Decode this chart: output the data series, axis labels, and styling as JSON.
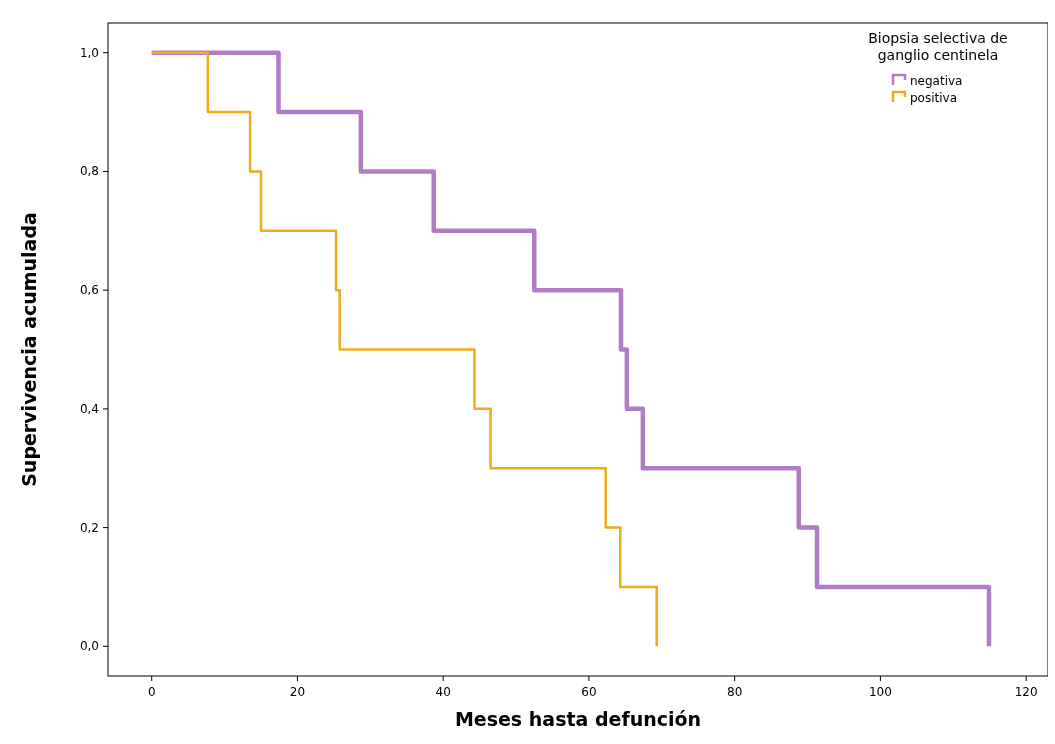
{
  "chart_data": {
    "type": "step",
    "xlabel": "Meses hasta defunción",
    "ylabel": "Supervivencia acumulada",
    "legend_title": "Biopsia selectiva de ganglio centinela",
    "legend": "top right",
    "grid": false,
    "xlim": [
      -6,
      123
    ],
    "ylim": [
      -0.05,
      1.05
    ],
    "xticks": [
      0,
      20,
      40,
      60,
      80,
      100,
      120
    ],
    "yticks": [
      {
        "value": 0,
        "label": "0,0"
      },
      {
        "value": 0.2,
        "label": "0,2"
      },
      {
        "value": 0.4,
        "label": "0,4"
      },
      {
        "value": 0.6,
        "label": "0,6"
      },
      {
        "value": 0.8,
        "label": "0,8"
      },
      {
        "value": 1,
        "label": "1,0"
      }
    ],
    "series": [
      {
        "name": "negativa",
        "color": "#b07cc6",
        "x": [
          0,
          17.4,
          28.7,
          38.7,
          52.5,
          64.4,
          65.2,
          67.4,
          88.8,
          91.3,
          114.9
        ],
        "values": [
          1,
          0.9,
          0.8,
          0.7,
          0.6,
          0.5,
          0.4,
          0.3,
          0.2,
          0.1,
          0
        ]
      },
      {
        "name": "positiva",
        "color": "#f0aa1e",
        "x": [
          0,
          7.7,
          13.5,
          15.0,
          25.3,
          25.8,
          44.3,
          46.5,
          62.3,
          64.3,
          69.3
        ],
        "values": [
          1,
          0.9,
          0.8,
          0.7,
          0.6,
          0.5,
          0.4,
          0.3,
          0.2,
          0.1,
          0
        ]
      }
    ]
  }
}
